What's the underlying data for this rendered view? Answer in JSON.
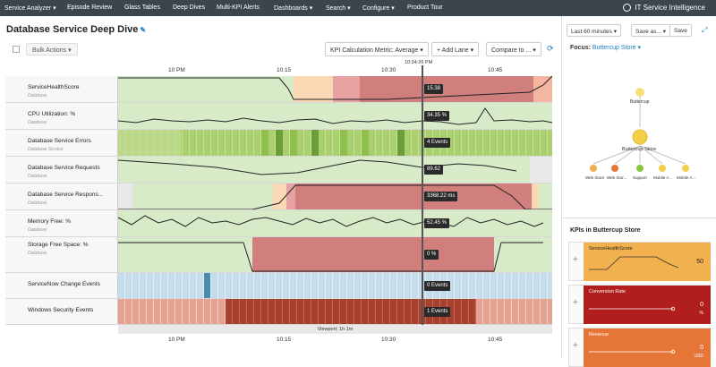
{
  "topnav": {
    "items": [
      "Service Analyzer ▾",
      "Episode Review",
      "Glass Tables",
      "Deep Dives",
      "Multi-KPI Alerts",
      "Dashboards ▾",
      "Search ▾",
      "Configure ▾",
      "Product Tour"
    ],
    "brand": "IT Service Intelligence"
  },
  "page": {
    "title": "Database Service Deep Dive",
    "edit_icon": "pencil-icon"
  },
  "toolbar": {
    "bulk_actions": "Bulk Actions ▾",
    "kpi_metric": "KPI Calculation Metric: Average ▾",
    "add_lane": "+ Add Lane ▾",
    "compare": "Compare to ... ▾"
  },
  "timeline": {
    "ticks": [
      "10 PM",
      "10:15",
      "10:30",
      "10:45"
    ],
    "cursor_time": "10:34:26 PM",
    "viewport": "Viewport: 1h 1m"
  },
  "lanes": [
    {
      "name": "ServiceHealthScore",
      "sub": "Database",
      "value": "15.38"
    },
    {
      "name": "CPU Utilization: %",
      "sub": "Database",
      "value": "34.35 %"
    },
    {
      "name": "Database Service Errors",
      "sub": "Database Service",
      "value": "4 Events"
    },
    {
      "name": "Database Service Requests",
      "sub": "Database",
      "value": "89.62"
    },
    {
      "name": "Database Service Respons...",
      "sub": "Database",
      "value": "3368.22 ms"
    },
    {
      "name": "Memory Free: %",
      "sub": "Database",
      "value": "52.45 %"
    },
    {
      "name": "Storage Free Space: %",
      "sub": "Database",
      "value": "0 %"
    },
    {
      "name": "ServiceNow Change Events",
      "sub": "",
      "value": "0 Events"
    },
    {
      "name": "Windows Security Events",
      "sub": "",
      "value": "1 Events"
    }
  ],
  "right_panel": {
    "time_range": "Last 60 minutes ▾",
    "save_as": "Save as... ▾",
    "save": "Save",
    "focus_label": "Focus:",
    "focus_value": "Buttercup Store ▾",
    "topology": {
      "root": "Buttercup",
      "center": "Buttercup Store",
      "children": [
        "Web Store",
        "Web Stor...",
        "Support",
        "Mobile A...",
        "Mobile A..."
      ]
    },
    "kpis_title": "KPIs in Buttercup Store",
    "kpis": [
      {
        "name": "ServiceHealthScore",
        "value": "50",
        "unit": "",
        "color": "#f0b14e",
        "text": "#222"
      },
      {
        "name": "Conversion Rate",
        "value": "0",
        "unit": "%",
        "color": "#b01e1e",
        "text": "#fff"
      },
      {
        "name": "Revenue",
        "value": "0",
        "unit": "USD",
        "color": "#e67638",
        "text": "#fff"
      }
    ]
  },
  "colors": {
    "nav": "#3c444d",
    "accent": "#1a7fc1",
    "green": "#d7ebc9",
    "pink": "#e5a2a0",
    "red": "#d07f7d",
    "peach": "#fbd9b4",
    "blue": "#c5dceb"
  }
}
